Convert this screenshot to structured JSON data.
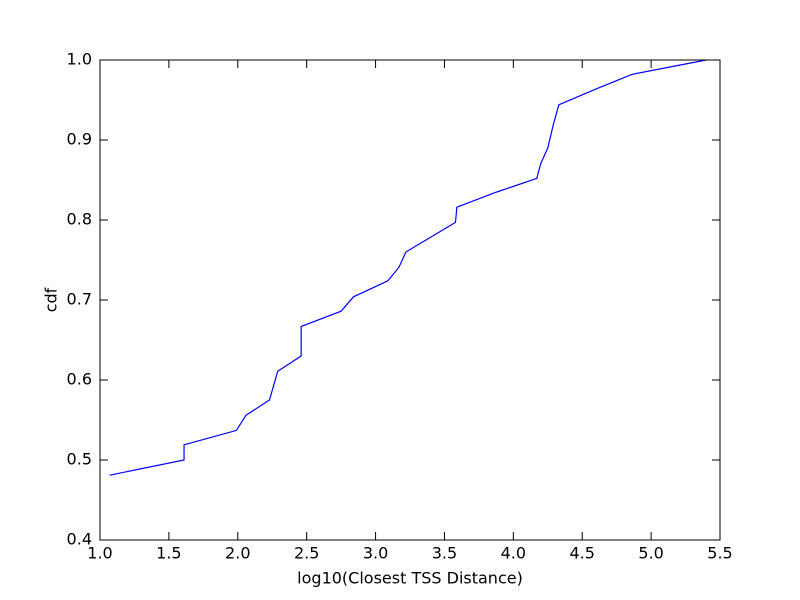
{
  "chart_data": {
    "type": "line",
    "xlabel": "log10(Closest TSS Distance)",
    "ylabel": "cdf",
    "x": [
      1.07,
      1.61,
      1.61,
      1.99,
      2.06,
      2.23,
      2.29,
      2.46,
      2.46,
      2.75,
      2.84,
      3.09,
      3.17,
      3.22,
      3.58,
      3.59,
      3.88,
      4.17,
      4.2,
      4.25,
      4.29,
      4.33,
      4.59,
      4.86,
      5.4
    ],
    "series": [
      {
        "name": "cdf",
        "color": "#0000ff",
        "values": [
          0.481,
          0.5,
          0.519,
          0.537,
          0.556,
          0.575,
          0.611,
          0.63,
          0.667,
          0.686,
          0.704,
          0.724,
          0.741,
          0.76,
          0.797,
          0.816,
          0.835,
          0.852,
          0.871,
          0.89,
          0.919,
          0.944,
          0.963,
          0.982,
          1.0
        ]
      }
    ],
    "xlim": [
      1.0,
      5.5
    ],
    "xticks": [
      {
        "value": 1,
        "label": "1.0"
      },
      1.5,
      {
        "value": 2,
        "label": "2.0"
      },
      2.5,
      {
        "value": 3,
        "label": "3.0"
      },
      3.5,
      {
        "value": 4,
        "label": "4.0"
      },
      4.5,
      {
        "value": 5,
        "label": "5.0"
      },
      5.5
    ],
    "ylim": [
      0.4,
      1.0
    ],
    "yticks": [
      0.4,
      0.5,
      0.6,
      0.7,
      0.8,
      0.9,
      {
        "value": 1,
        "label": "1.0"
      }
    ],
    "grid": false
  }
}
